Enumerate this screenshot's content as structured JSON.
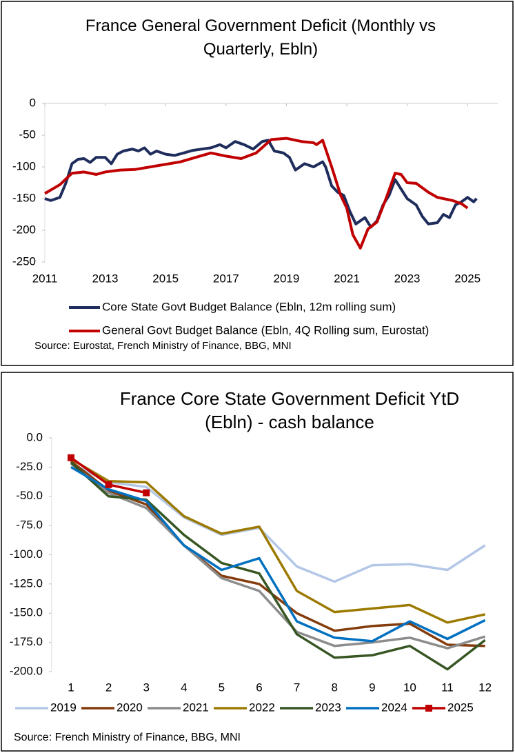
{
  "chart_data": [
    {
      "type": "line",
      "title": "France General Government Deficit (Monthly vs Quarterly, Ebln)",
      "source": "Source: Eurostat, French Ministry of Finance, BBG, MNI",
      "xlim": [
        2011,
        2026
      ],
      "xticks": [
        2011,
        2013,
        2015,
        2017,
        2019,
        2021,
        2023,
        2025
      ],
      "ylim": [
        -250,
        0
      ],
      "yticks": [
        0,
        -50,
        -100,
        -150,
        -200,
        -250
      ],
      "legend": "bottom",
      "series": [
        {
          "name": "Core State Govt Budget Balance (Ebln, 12m rolling sum)",
          "color": "#1f2d5c",
          "x": [
            2011.0,
            2011.2,
            2011.5,
            2011.7,
            2011.9,
            2012.1,
            2012.3,
            2012.5,
            2012.7,
            2013.0,
            2013.2,
            2013.4,
            2013.6,
            2013.9,
            2014.1,
            2014.3,
            2014.5,
            2014.7,
            2015.0,
            2015.3,
            2015.6,
            2015.9,
            2016.2,
            2016.5,
            2016.8,
            2017.0,
            2017.3,
            2017.6,
            2017.9,
            2018.2,
            2018.4,
            2018.6,
            2018.9,
            2019.1,
            2019.3,
            2019.6,
            2019.9,
            2020.2,
            2020.3,
            2020.5,
            2020.7,
            2020.9,
            2021.1,
            2021.3,
            2021.6,
            2021.8,
            2022.0,
            2022.2,
            2022.4,
            2022.6,
            2022.8,
            2023.0,
            2023.3,
            2023.5,
            2023.7,
            2024.0,
            2024.2,
            2024.4,
            2024.6,
            2024.8,
            2025.0,
            2025.2,
            2025.3
          ],
          "values": [
            -150,
            -153,
            -148,
            -125,
            -95,
            -88,
            -87,
            -93,
            -85,
            -85,
            -95,
            -80,
            -75,
            -72,
            -75,
            -70,
            -80,
            -75,
            -80,
            -82,
            -78,
            -74,
            -72,
            -70,
            -65,
            -70,
            -60,
            -65,
            -72,
            -60,
            -58,
            -75,
            -78,
            -85,
            -105,
            -95,
            -100,
            -92,
            -100,
            -130,
            -140,
            -145,
            -170,
            -190,
            -180,
            -195,
            -185,
            -160,
            -145,
            -120,
            -135,
            -150,
            -160,
            -178,
            -190,
            -188,
            -175,
            -180,
            -160,
            -155,
            -148,
            -155,
            -150
          ]
        },
        {
          "name": "General Govt Budget Balance (Ebln, 4Q Rolling sum, Eurostat)",
          "color": "#c00000",
          "x": [
            2011.0,
            2011.5,
            2011.9,
            2012.3,
            2012.7,
            2013.0,
            2013.5,
            2014.0,
            2014.5,
            2015.0,
            2015.5,
            2016.0,
            2016.5,
            2017.0,
            2017.5,
            2018.0,
            2018.5,
            2019.0,
            2019.5,
            2019.9,
            2020.0,
            2020.2,
            2020.5,
            2020.8,
            2021.0,
            2021.2,
            2021.45,
            2021.7,
            2022.0,
            2022.3,
            2022.6,
            2022.8,
            2023.0,
            2023.3,
            2023.7,
            2024.0,
            2024.5,
            2024.8,
            2025.0
          ],
          "values": [
            -142,
            -128,
            -110,
            -108,
            -112,
            -108,
            -105,
            -104,
            -100,
            -96,
            -92,
            -85,
            -78,
            -83,
            -87,
            -78,
            -57,
            -55,
            -60,
            -62,
            -65,
            -58,
            -100,
            -145,
            -165,
            -207,
            -228,
            -198,
            -187,
            -150,
            -110,
            -112,
            -125,
            -126,
            -140,
            -148,
            -153,
            -158,
            -165
          ]
        }
      ]
    },
    {
      "type": "line",
      "title": "France Core State Government Deficit YtD (Ebln) - cash balance",
      "source": "Source: French Ministry of Finance, BBG, MNI",
      "categories": [
        1,
        2,
        3,
        4,
        5,
        6,
        7,
        8,
        9,
        10,
        11,
        12
      ],
      "ylim": [
        -200,
        0
      ],
      "yticks": [
        {
          "value": 0,
          "label": "0.0"
        },
        {
          "value": -25,
          "label": "-25.0"
        },
        {
          "value": -50,
          "label": "-50.0"
        },
        {
          "value": -75,
          "label": "-75.0"
        },
        {
          "value": -100,
          "label": "-100.0"
        },
        {
          "value": -125,
          "label": "-125.0"
        },
        {
          "value": -150,
          "label": "-150.0"
        },
        {
          "value": -175,
          "label": "-175.0"
        },
        {
          "value": -200,
          "label": "-200.0"
        }
      ],
      "legend": "bottom",
      "series": [
        {
          "name": "2019",
          "color": "#b4c7e7",
          "values": [
            -22,
            -38,
            -42,
            -68,
            -83,
            -77,
            -110,
            -123,
            -109,
            -108,
            -113,
            -92
          ]
        },
        {
          "name": "2020",
          "color": "#843c0c",
          "values": [
            -20,
            -45,
            -57,
            -92,
            -118,
            -125,
            -150,
            -165,
            -161,
            -159,
            -177,
            -178
          ]
        },
        {
          "name": "2021",
          "color": "#8c8c8c",
          "values": [
            -22,
            -47,
            -60,
            -92,
            -120,
            -131,
            -166,
            -178,
            -175,
            -171,
            -180,
            -170
          ]
        },
        {
          "name": "2022",
          "color": "#9c7a00",
          "values": [
            -18,
            -37,
            -38,
            -67,
            -82,
            -76,
            -131,
            -149,
            -146,
            -143,
            -158,
            -151
          ]
        },
        {
          "name": "2023",
          "color": "#375623",
          "values": [
            -21,
            -50,
            -53,
            -83,
            -107,
            -116,
            -168,
            -188,
            -186,
            -178,
            -198,
            -173
          ]
        },
        {
          "name": "2024",
          "color": "#0070c0",
          "values": [
            -25,
            -44,
            -54,
            -92,
            -113,
            -103,
            -157,
            -171,
            -174,
            -157,
            -172,
            -156
          ]
        },
        {
          "name": "2025",
          "color": "#c00000",
          "marker": "square",
          "values": [
            -17,
            -40,
            -47,
            null,
            null,
            null,
            null,
            null,
            null,
            null,
            null,
            null
          ]
        }
      ]
    }
  ]
}
